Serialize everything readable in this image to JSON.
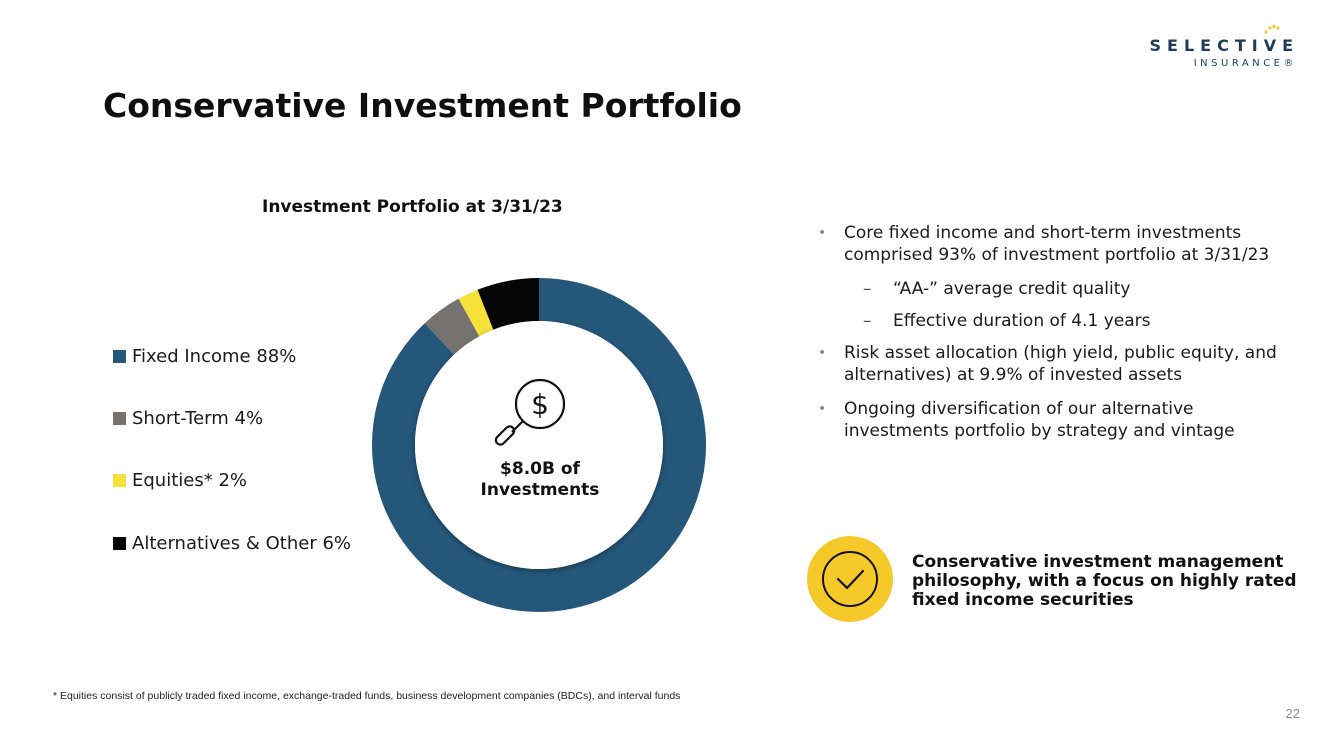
{
  "logo": {
    "word": "SELECTIVE",
    "sub": "INSURANCE®"
  },
  "title": "Conservative Investment Portfolio",
  "chart_data": {
    "type": "pie",
    "title": "Investment Portfolio at 3/31/23",
    "categories": [
      "Fixed Income",
      "Short-Term",
      "Equities*",
      "Alternatives & Other"
    ],
    "values": [
      88,
      4,
      2,
      6
    ],
    "unit": "%",
    "colors": [
      "#24577a",
      "#757270",
      "#f6e03a",
      "#050505"
    ],
    "legend_labels": [
      "Fixed Income 88%",
      "Short-Term 4%",
      "Equities* 2%",
      "Alternatives & Other 6%"
    ],
    "legend_position": "left",
    "center_label_line1": "$8.0B of",
    "center_label_line2": "Investments"
  },
  "bullets": [
    {
      "text": "Core fixed income and short-term investments comprised 93% of investment portfolio at 3/31/23",
      "subs": [
        "“AA-” average credit quality",
        "Effective duration of 4.1 years"
      ]
    },
    {
      "text": "Risk asset allocation (high yield, public equity, and alternatives) at 9.9% of invested assets",
      "subs": []
    },
    {
      "text": "Ongoing diversification of our alternative investments portfolio by strategy and vintage",
      "subs": []
    }
  ],
  "callout": "Conservative investment management philosophy, with a focus on highly rated fixed income securities",
  "footnote": "* Equities consist of publicly traded fixed income, exchange-traded funds, business development companies (BDCs), and interval funds",
  "page_number": "22",
  "icons": {
    "center": "search-dollar-icon",
    "callout": "checkmark-circle-icon"
  },
  "accent_color": "#f6c92b"
}
